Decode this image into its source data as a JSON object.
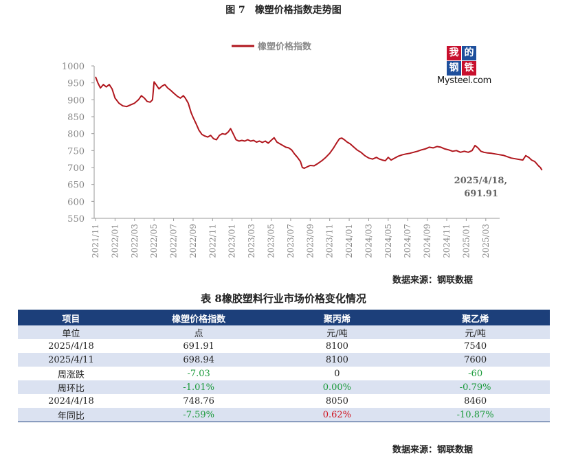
{
  "figure": {
    "number": "图 7",
    "title": "橡塑价格指数走势图"
  },
  "logo": {
    "cells": [
      "我",
      "的",
      "钢",
      "铁"
    ],
    "wordmark": "Mysteel.com"
  },
  "chart_data": {
    "type": "line",
    "legend": [
      "橡塑价格指数"
    ],
    "legend_position": "top-center",
    "color": "#b0161d",
    "ylim": [
      550,
      1000
    ],
    "yticks": [
      "550",
      "600",
      "650",
      "700",
      "750",
      "800",
      "850",
      "900",
      "950",
      "1000"
    ],
    "xticks": [
      "2021/11",
      "2022/01",
      "2022/03",
      "2022/05",
      "2022/07",
      "2022/09",
      "2022/11",
      "2023/01",
      "2023/03",
      "2023/05",
      "2023/07",
      "2023/09",
      "2023/11",
      "2024/01",
      "2024/03",
      "2024/05",
      "2024/07",
      "2024/09",
      "2024/11",
      "2025/01",
      "2025/03"
    ],
    "annotation": {
      "line1": "2025/4/18,",
      "line2": "691.91"
    },
    "grid": false,
    "series": [
      {
        "name": "橡塑价格指数",
        "points": [
          [
            0,
            968
          ],
          [
            0.12,
            950
          ],
          [
            0.25,
            935
          ],
          [
            0.4,
            945
          ],
          [
            0.55,
            938
          ],
          [
            0.7,
            945
          ],
          [
            0.85,
            932
          ],
          [
            1.0,
            905
          ],
          [
            1.2,
            890
          ],
          [
            1.4,
            882
          ],
          [
            1.6,
            880
          ],
          [
            1.8,
            885
          ],
          [
            2.0,
            890
          ],
          [
            2.2,
            900
          ],
          [
            2.35,
            912
          ],
          [
            2.5,
            905
          ],
          [
            2.65,
            895
          ],
          [
            2.8,
            893
          ],
          [
            2.92,
            900
          ],
          [
            3.0,
            953
          ],
          [
            3.1,
            945
          ],
          [
            3.25,
            932
          ],
          [
            3.4,
            940
          ],
          [
            3.55,
            945
          ],
          [
            3.7,
            935
          ],
          [
            3.85,
            928
          ],
          [
            4.0,
            920
          ],
          [
            4.2,
            910
          ],
          [
            4.35,
            905
          ],
          [
            4.5,
            912
          ],
          [
            4.6,
            905
          ],
          [
            4.75,
            890
          ],
          [
            4.9,
            862
          ],
          [
            5.0,
            848
          ],
          [
            5.15,
            830
          ],
          [
            5.3,
            810
          ],
          [
            5.45,
            798
          ],
          [
            5.6,
            793
          ],
          [
            5.75,
            790
          ],
          [
            5.9,
            795
          ],
          [
            6.05,
            785
          ],
          [
            6.2,
            782
          ],
          [
            6.35,
            795
          ],
          [
            6.5,
            800
          ],
          [
            6.65,
            798
          ],
          [
            6.8,
            805
          ],
          [
            6.92,
            815
          ],
          [
            7.05,
            800
          ],
          [
            7.2,
            782
          ],
          [
            7.35,
            778
          ],
          [
            7.5,
            780
          ],
          [
            7.65,
            778
          ],
          [
            7.8,
            782
          ],
          [
            7.95,
            778
          ],
          [
            8.1,
            780
          ],
          [
            8.25,
            775
          ],
          [
            8.4,
            778
          ],
          [
            8.55,
            774
          ],
          [
            8.7,
            778
          ],
          [
            8.85,
            772
          ],
          [
            9.0,
            780
          ],
          [
            9.15,
            788
          ],
          [
            9.3,
            775
          ],
          [
            9.45,
            770
          ],
          [
            9.6,
            765
          ],
          [
            9.75,
            760
          ],
          [
            9.9,
            758
          ],
          [
            10.05,
            752
          ],
          [
            10.2,
            740
          ],
          [
            10.35,
            730
          ],
          [
            10.5,
            718
          ],
          [
            10.6,
            700
          ],
          [
            10.7,
            698
          ],
          [
            10.85,
            702
          ],
          [
            11.0,
            706
          ],
          [
            11.2,
            705
          ],
          [
            11.4,
            712
          ],
          [
            11.6,
            720
          ],
          [
            11.8,
            730
          ],
          [
            12.0,
            742
          ],
          [
            12.2,
            758
          ],
          [
            12.35,
            772
          ],
          [
            12.5,
            785
          ],
          [
            12.62,
            787
          ],
          [
            12.75,
            782
          ],
          [
            12.9,
            775
          ],
          [
            13.05,
            770
          ],
          [
            13.2,
            762
          ],
          [
            13.4,
            752
          ],
          [
            13.6,
            745
          ],
          [
            13.8,
            735
          ],
          [
            14.0,
            728
          ],
          [
            14.2,
            725
          ],
          [
            14.4,
            730
          ],
          [
            14.55,
            725
          ],
          [
            14.7,
            722
          ],
          [
            14.85,
            720
          ],
          [
            15.0,
            730
          ],
          [
            15.15,
            722
          ],
          [
            15.3,
            727
          ],
          [
            15.5,
            733
          ],
          [
            15.7,
            737
          ],
          [
            15.9,
            740
          ],
          [
            16.1,
            742
          ],
          [
            16.3,
            745
          ],
          [
            16.5,
            748
          ],
          [
            16.7,
            752
          ],
          [
            16.9,
            755
          ],
          [
            17.1,
            760
          ],
          [
            17.3,
            758
          ],
          [
            17.5,
            762
          ],
          [
            17.7,
            760
          ],
          [
            17.9,
            755
          ],
          [
            18.1,
            752
          ],
          [
            18.3,
            748
          ],
          [
            18.5,
            750
          ],
          [
            18.7,
            745
          ],
          [
            18.9,
            748
          ],
          [
            19.1,
            745
          ],
          [
            19.3,
            750
          ],
          [
            19.45,
            765
          ],
          [
            19.6,
            758
          ],
          [
            19.75,
            748
          ],
          [
            19.9,
            745
          ],
          [
            20.1,
            743
          ],
          [
            20.3,
            742
          ],
          [
            20.5,
            740
          ],
          [
            20.7,
            738
          ],
          [
            20.9,
            736
          ],
          [
            21.1,
            732
          ],
          [
            21.3,
            728
          ],
          [
            21.5,
            726
          ],
          [
            21.7,
            724
          ],
          [
            21.9,
            722
          ],
          [
            22.05,
            735
          ],
          [
            22.2,
            730
          ],
          [
            22.35,
            722
          ],
          [
            22.5,
            718
          ],
          [
            22.6,
            712
          ],
          [
            22.7,
            705
          ],
          [
            22.8,
            700
          ],
          [
            22.88,
            692
          ]
        ]
      }
    ]
  },
  "chart_source": "数据来源：钢联数据",
  "table": {
    "number": "表 8",
    "title": "橡胶塑料行业市场价格变化情况",
    "headers": [
      "项目",
      "橡塑价格指数",
      "聚丙烯",
      "聚乙烯"
    ],
    "rows": [
      {
        "cells": [
          "单位",
          "点",
          "元/吨",
          "元/吨"
        ],
        "colors": [
          "",
          "",
          "",
          ""
        ]
      },
      {
        "cells": [
          "2025/4/18",
          "691.91",
          "8100",
          "7540"
        ],
        "colors": [
          "",
          "",
          "",
          ""
        ]
      },
      {
        "cells": [
          "2025/4/11",
          "698.94",
          "8100",
          "7600"
        ],
        "colors": [
          "",
          "",
          "",
          ""
        ]
      },
      {
        "cells": [
          "周涨跌",
          "-7.03",
          "0",
          "-60"
        ],
        "colors": [
          "",
          "neg",
          "",
          "neg"
        ]
      },
      {
        "cells": [
          "周环比",
          "-1.01%",
          "0.00%",
          "-0.79%"
        ],
        "colors": [
          "",
          "neg",
          "neg",
          "neg"
        ]
      },
      {
        "cells": [
          "2024/4/18",
          "748.76",
          "8050",
          "8460"
        ],
        "colors": [
          "",
          "",
          "",
          ""
        ]
      },
      {
        "cells": [
          "年同比",
          "-7.59%",
          "0.62%",
          "-10.87%"
        ],
        "colors": [
          "",
          "neg",
          "pos",
          "neg"
        ]
      }
    ]
  },
  "table_source": "数据来源：钢联数据"
}
